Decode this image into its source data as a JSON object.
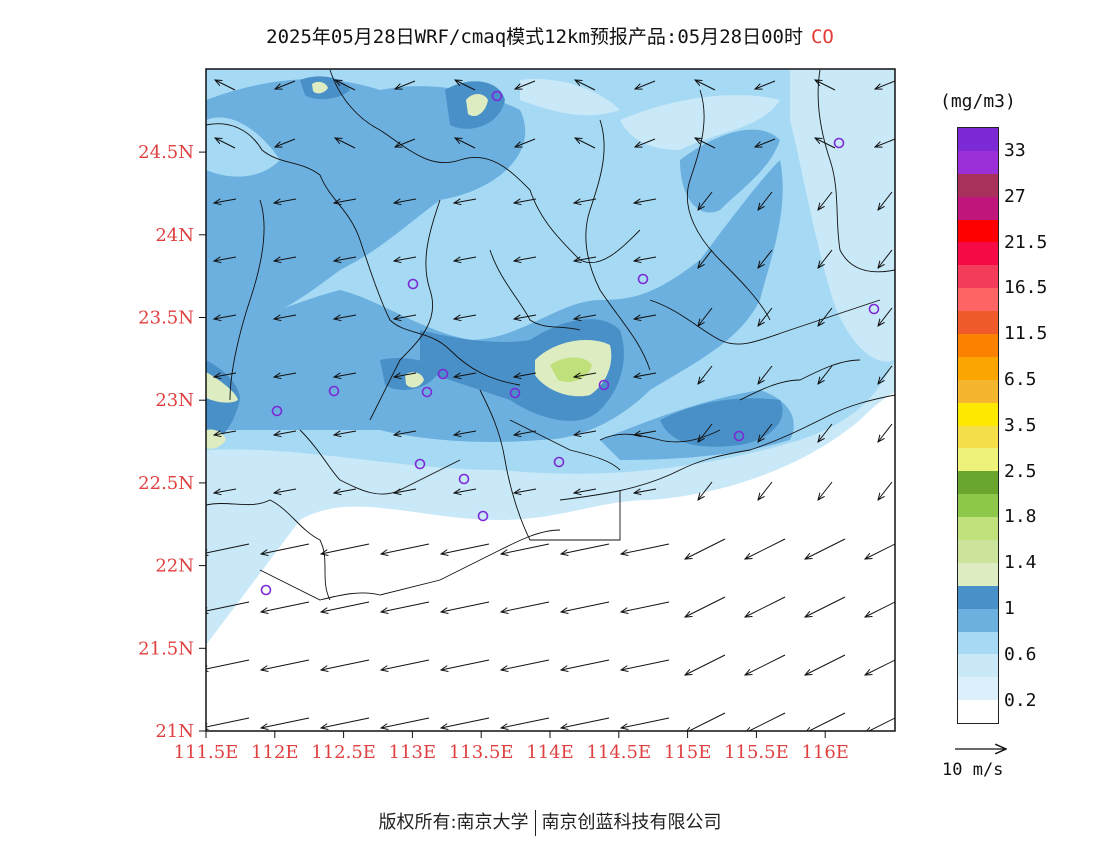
{
  "title": {
    "text": "2025年05月28日WRF/cmaq模式12km预报产品:05月28日00时",
    "species": "CO",
    "species_color": "#e53935"
  },
  "map": {
    "lon_ticks": [
      "111.5E",
      "112E",
      "112.5E",
      "113E",
      "113.5E",
      "114E",
      "114.5E",
      "115E",
      "115.5E",
      "116E"
    ],
    "lat_ticks": [
      "21N",
      "21.5N",
      "22N",
      "22.5N",
      "23N",
      "23.5N",
      "24N",
      "24.5N"
    ],
    "tick_color": "#e04040"
  },
  "colorbar": {
    "unit": "(mg/m3)",
    "colors": [
      "#7b2ad6",
      "#9b30d8",
      "#a8305c",
      "#c0157a",
      "#ff0000",
      "#f50a46",
      "#f43c5a",
      "#ff6464",
      "#f05a2a",
      "#fb8100",
      "#fca400",
      "#f5b52e",
      "#ffe800",
      "#f4de4a",
      "#eef17a",
      "#6aa62e",
      "#8dc84a",
      "#bfe07a",
      "#cbe39a",
      "#deecc2",
      "#4a90c8",
      "#6cb0e0",
      "#a6daf4",
      "#c9e8f8",
      "#dbf0fa",
      "#ffffff"
    ],
    "labels": [
      "33",
      "27",
      "21.5",
      "16.5",
      "11.5",
      "6.5",
      "3.5",
      "2.5",
      "1.8",
      "1.4",
      "1",
      "0.6",
      "0.2"
    ]
  },
  "wind_legend": "10 m/s",
  "footer": {
    "left": "版权所有:南京大学",
    "right": "南京创蓝科技有限公司"
  }
}
